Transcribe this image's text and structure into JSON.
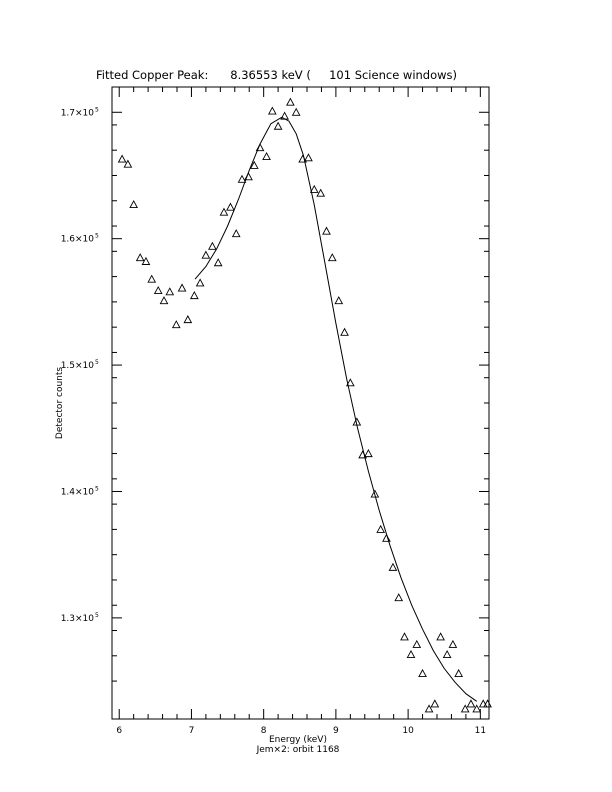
{
  "chart_data": {
    "type": "scatter",
    "title": "Fitted Copper Peak:      8.36553 keV (     101 Science windows)",
    "xlabel": "Energy (keV)",
    "subtitle": "Jem×2: orbit 1168",
    "ylabel": "Detector counts",
    "xlim": [
      5.9,
      11.12
    ],
    "ylim": [
      122000,
      172000
    ],
    "x_ticks": [
      "6",
      "7",
      "8",
      "9",
      "10",
      "11"
    ],
    "y_ticks": [
      {
        "value": 130000,
        "base": "1.3×10",
        "exp": "5"
      },
      {
        "value": 140000,
        "base": "1.4×10",
        "exp": "5"
      },
      {
        "value": 150000,
        "base": "1.5×10",
        "exp": "5"
      },
      {
        "value": 160000,
        "base": "1.6×10",
        "exp": "5"
      },
      {
        "value": 170000,
        "base": "1.7×10",
        "exp": "5"
      }
    ],
    "series": [
      {
        "marker": "triangle",
        "x": [
          6.04,
          6.12,
          6.2,
          6.29,
          6.37,
          6.45,
          6.54,
          6.62,
          6.7,
          6.79,
          6.87,
          6.95,
          7.04,
          7.12,
          7.2,
          7.29,
          7.37,
          7.45,
          7.54,
          7.62,
          7.7,
          7.79,
          7.87,
          7.95,
          8.04,
          8.12,
          8.2,
          8.29,
          8.37,
          8.45,
          8.54,
          8.62,
          8.7,
          8.79,
          8.87,
          8.95,
          9.04,
          9.12,
          9.2,
          9.29,
          9.37,
          9.45,
          9.54,
          9.62,
          9.7,
          9.79,
          9.87,
          9.95,
          10.04,
          10.12,
          10.2,
          10.29,
          10.37,
          10.45,
          10.54,
          10.62,
          10.7,
          10.79,
          10.87,
          10.95,
          11.04,
          11.1
        ],
        "y": [
          166300,
          165900,
          162700,
          158500,
          158200,
          156800,
          155900,
          155100,
          155800,
          153200,
          156100,
          153600,
          155500,
          156500,
          158700,
          159400,
          158100,
          162100,
          162500,
          160400,
          164700,
          164900,
          165800,
          167200,
          166500,
          170100,
          168900,
          169700,
          170800,
          170000,
          166300,
          166400,
          163900,
          163600,
          160600,
          158500,
          155100,
          152600,
          148600,
          145500,
          142900,
          143000,
          139800,
          137000,
          136300,
          134000,
          131600,
          128500,
          127100,
          127900,
          125600,
          122800,
          123200,
          128500,
          127100,
          127900,
          125600,
          122800,
          123200,
          122800,
          123200,
          123200
        ]
      },
      {
        "name": "fit",
        "x": [
          7.05,
          7.2,
          7.35,
          7.5,
          7.65,
          7.8,
          7.95,
          8.1,
          8.25,
          8.35,
          8.45,
          8.55,
          8.7,
          8.85,
          9.0,
          9.15,
          9.3,
          9.45,
          9.6,
          9.75,
          9.9,
          10.05,
          10.2,
          10.35,
          10.5,
          10.65,
          10.8,
          10.95
        ],
        "y": [
          156800,
          157800,
          159200,
          161000,
          163100,
          165400,
          167500,
          169100,
          169600,
          169300,
          168300,
          166600,
          162700,
          158000,
          153300,
          148900,
          145000,
          141600,
          138500,
          135700,
          133200,
          131000,
          129100,
          127400,
          126000,
          124900,
          124000,
          123400
        ]
      }
    ]
  }
}
